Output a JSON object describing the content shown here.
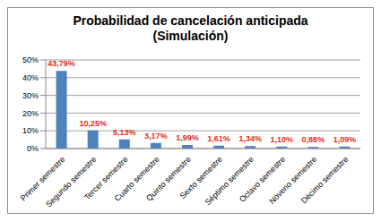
{
  "chart_data": {
    "type": "bar",
    "title": "Probabilidad de cancelación anticipada",
    "subtitle": "(Simulación)",
    "categories": [
      "Primer semestre",
      "Segundo semestre",
      "Tercer semestre",
      "Cuarto semestre",
      "Quinto semestre",
      "Sexto semestre",
      "Séptimo semestre",
      "Octavo semestre",
      "Noveno semestre",
      "Décimo semestre"
    ],
    "values": [
      43.79,
      10.25,
      5.13,
      3.17,
      1.99,
      1.61,
      1.34,
      1.1,
      0.88,
      1.09
    ],
    "value_labels": [
      "43,79%",
      "10,25%",
      "5,13%",
      "3,17%",
      "1,99%",
      "1,61%",
      "1,34%",
      "1,10%",
      "0,88%",
      "1,09%"
    ],
    "color": "#4f81bd",
    "ylim": [
      0,
      50
    ],
    "yticks": [
      {
        "value": 0,
        "label": "0%"
      },
      {
        "value": 10,
        "label": "10%"
      },
      {
        "value": 20,
        "label": "20%"
      },
      {
        "value": 30,
        "label": "30%"
      },
      {
        "value": 40,
        "label": "40%"
      },
      {
        "value": 50,
        "label": "50%"
      }
    ],
    "grid": true,
    "data_labels": true
  }
}
